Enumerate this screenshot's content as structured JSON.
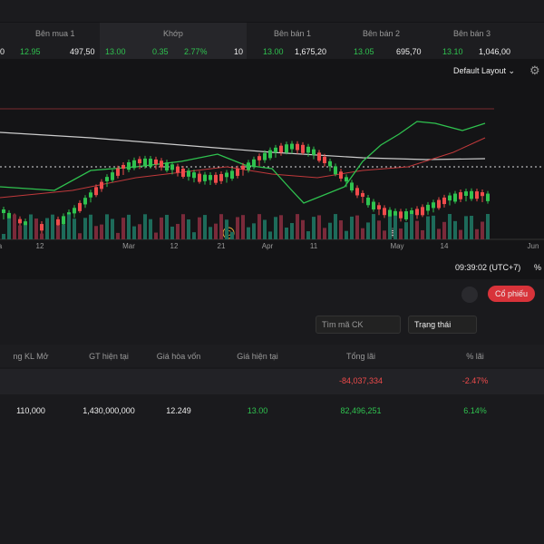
{
  "order_book": {
    "partial_left": "0",
    "bid1": {
      "label": "Bên mua 1",
      "price": "12.95",
      "volume": "497,50"
    },
    "match": {
      "label": "Khớp",
      "price": "13.00",
      "change": "0.35",
      "change_pct": "2.77%",
      "volume": "10"
    },
    "ask1": {
      "label": "Bên bán 1",
      "price": "13.00",
      "volume": "1,675,20"
    },
    "ask2": {
      "label": "Bên bán 2",
      "price": "13.05",
      "volume": "695,70"
    },
    "ask3": {
      "label": "Bên bán 3",
      "price": "13.10",
      "volume": "1,046,00"
    }
  },
  "toolbar": {
    "layout": "Default Layout"
  },
  "chart": {
    "x_labels": [
      "a",
      "12",
      "Mar",
      "12",
      "21",
      "Apr",
      "11",
      "May",
      "14",
      "Jun"
    ],
    "markers": [
      "C",
      "E"
    ],
    "time": "09:39:02 (UTC+7)",
    "percent": "%"
  },
  "panel": {
    "tab": "Cổ phiếu",
    "search": "Tìm mã CK",
    "status": "Trạng thái",
    "table": {
      "headers": [
        "ng KL Mở",
        "GT hiện tại",
        "Giá hòa vốn",
        "Giá hiện tại",
        "Tổng lãi",
        "% lãi"
      ],
      "rows": [
        [
          "",
          "",
          "",
          "",
          "-84,037,334",
          "-2.47%"
        ],
        [
          "110,000",
          "1,430,000,000",
          "12.249",
          "13.00",
          "82,496,251",
          "6.14%"
        ]
      ]
    }
  }
}
